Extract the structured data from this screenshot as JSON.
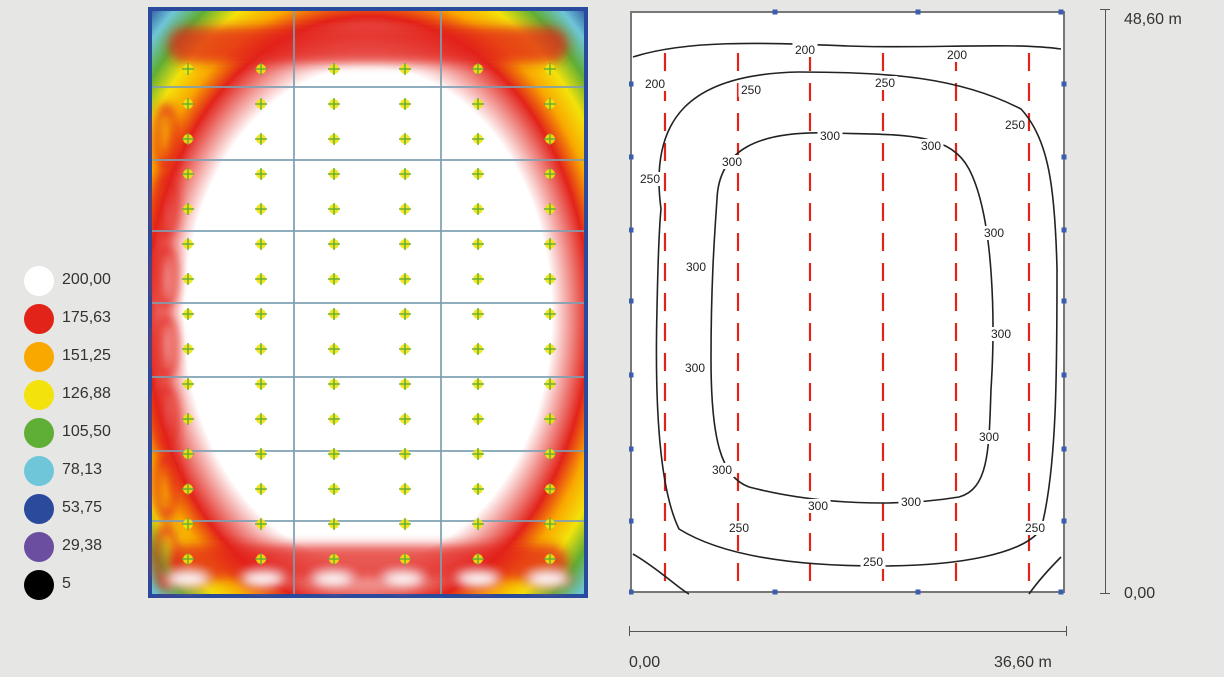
{
  "legend": {
    "items": [
      {
        "label": "200,00",
        "color": "#ffffff"
      },
      {
        "label": "175,63",
        "color": "#e2231a"
      },
      {
        "label": "151,25",
        "color": "#f9a800"
      },
      {
        "label": "126,88",
        "color": "#f3e20b"
      },
      {
        "label": "105,50",
        "color": "#5fae35"
      },
      {
        "label": "78,13",
        "color": "#6ec6d8"
      },
      {
        "label": "53,75",
        "color": "#2a4a9c"
      },
      {
        "label": "29,38",
        "color": "#6c4ea0"
      },
      {
        "label": "5",
        "color": "#000000"
      }
    ]
  },
  "dimensions": {
    "height_label": "48,60 m",
    "height_zero": "0,00",
    "width_zero": "0,00",
    "width_label": "36,60 m"
  },
  "contour_labels": [
    "200",
    "250",
    "300"
  ]
}
